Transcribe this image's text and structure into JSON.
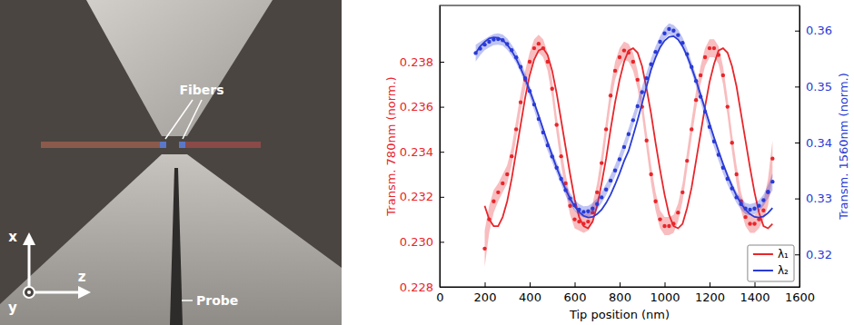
{
  "image_panel": {
    "labels": [
      "Fibers",
      "Probe"
    ],
    "axes": [
      "x",
      "y",
      "z"
    ]
  },
  "chart_data": {
    "type": "line",
    "xlabel": "Tip position (nm)",
    "ylabel": "Transm. 780nm (norm.)",
    "y2label": "Transm. 1560nm (norm.)",
    "xlim": [
      0,
      1600
    ],
    "xticks": [
      0,
      200,
      400,
      600,
      800,
      1000,
      1200,
      1400,
      1600
    ],
    "ylim": [
      0.228,
      0.2405
    ],
    "yticks": [
      0.228,
      {
        "value": 0.23,
        "label": "0.230"
      },
      0.232,
      0.234,
      0.236,
      0.238
    ],
    "y2lim": [
      0.3142,
      0.3645
    ],
    "y2ticks": [
      0.32,
      0.33,
      0.34,
      0.35,
      0.36
    ],
    "grid": false,
    "legend": "lower right",
    "series": [
      {
        "name": "λ₁",
        "color": "#e8262b",
        "marker": "circle",
        "x": [
          200,
          220,
          240,
          260,
          280,
          300,
          320,
          340,
          360,
          380,
          400,
          420,
          440,
          460,
          480,
          500,
          520,
          540,
          560,
          580,
          600,
          620,
          640,
          660,
          680,
          700,
          720,
          740,
          760,
          780,
          800,
          820,
          840,
          860,
          880,
          900,
          920,
          940,
          960,
          980,
          1000,
          1020,
          1040,
          1060,
          1080,
          1100,
          1120,
          1140,
          1160,
          1180,
          1200,
          1220,
          1240,
          1260,
          1280,
          1300,
          1320,
          1340,
          1360,
          1380,
          1400,
          1420,
          1440,
          1460,
          1480
        ],
        "values": [
          0.2297,
          0.231,
          0.2318,
          0.2322,
          0.2326,
          0.233,
          0.2338,
          0.235,
          0.2362,
          0.2372,
          0.238,
          0.2386,
          0.2388,
          0.2386,
          0.238,
          0.2368,
          0.2352,
          0.2338,
          0.2326,
          0.2316,
          0.231,
          0.2309,
          0.2308,
          0.2309,
          0.2313,
          0.2322,
          0.2335,
          0.235,
          0.2365,
          0.2376,
          0.2382,
          0.2385,
          0.2384,
          0.238,
          0.2372,
          0.236,
          0.2345,
          0.233,
          0.2318,
          0.231,
          0.2307,
          0.2307,
          0.2308,
          0.2313,
          0.2322,
          0.2336,
          0.235,
          0.2363,
          0.2374,
          0.2382,
          0.2386,
          0.2386,
          0.2383,
          0.2374,
          0.236,
          0.2344,
          0.233,
          0.2318,
          0.2311,
          0.2308,
          0.2308,
          0.231,
          0.2314,
          0.2322,
          0.2337
        ],
        "errors": [
          0.0008,
          0.0006,
          0.0005,
          0.0004,
          0.0004,
          0.0004,
          0.0004,
          0.0004,
          0.0004,
          0.0004,
          0.0004,
          0.0004,
          0.0004,
          0.0004,
          0.0004,
          0.0004,
          0.0004,
          0.0004,
          0.0004,
          0.0004,
          0.0004,
          0.0004,
          0.0004,
          0.0004,
          0.0004,
          0.0004,
          0.0004,
          0.0004,
          0.0004,
          0.0004,
          0.0004,
          0.0004,
          0.0004,
          0.0004,
          0.0004,
          0.0004,
          0.0004,
          0.0004,
          0.0004,
          0.0004,
          0.0004,
          0.0004,
          0.0004,
          0.0004,
          0.0004,
          0.0004,
          0.0004,
          0.0004,
          0.0004,
          0.0004,
          0.0004,
          0.0004,
          0.0004,
          0.0004,
          0.0004,
          0.0004,
          0.0004,
          0.0004,
          0.0004,
          0.0004,
          0.0004,
          0.0004,
          0.0004,
          0.0006,
          0.0008
        ],
        "fit": [
          0.2316,
          0.231,
          0.2307,
          0.2307,
          0.2311,
          0.2318,
          0.2328,
          0.234,
          0.2352,
          0.2364,
          0.2374,
          0.2381,
          0.2385,
          0.2386,
          0.2383,
          0.2376,
          0.2366,
          0.2354,
          0.2342,
          0.233,
          0.2319,
          0.2311,
          0.2307,
          0.2306,
          0.2309,
          0.2316,
          0.2326,
          0.2337,
          0.235,
          0.2362,
          0.2372,
          0.238,
          0.2385,
          0.2386,
          0.2384,
          0.2378,
          0.2368,
          0.2357,
          0.2344,
          0.2332,
          0.2321,
          0.2312,
          0.2307,
          0.2306,
          0.2308,
          0.2315,
          0.2324,
          0.2336,
          0.2348,
          0.236,
          0.2371,
          0.2379,
          0.2385,
          0.2386,
          0.2384,
          0.2378,
          0.2369,
          0.2357,
          0.2345,
          0.2333,
          0.2322,
          0.2313,
          0.2307,
          0.2306,
          0.2308
        ]
      },
      {
        "name": "λ₂",
        "color": "#2a3bd6",
        "marker": "circle",
        "axis": "y2",
        "x": [
          160,
          180,
          200,
          220,
          240,
          260,
          280,
          300,
          320,
          340,
          360,
          380,
          400,
          420,
          440,
          460,
          480,
          500,
          520,
          540,
          560,
          580,
          600,
          620,
          640,
          660,
          680,
          700,
          720,
          740,
          760,
          780,
          800,
          820,
          840,
          860,
          880,
          900,
          920,
          940,
          960,
          980,
          1000,
          1020,
          1040,
          1060,
          1080,
          1100,
          1120,
          1140,
          1160,
          1180,
          1200,
          1220,
          1240,
          1260,
          1280,
          1300,
          1320,
          1340,
          1360,
          1380,
          1400,
          1420,
          1440,
          1460,
          1480
        ],
        "values": [
          0.356,
          0.3568,
          0.3575,
          0.358,
          0.3584,
          0.3585,
          0.3583,
          0.3576,
          0.3565,
          0.3552,
          0.3535,
          0.3515,
          0.3492,
          0.3468,
          0.3442,
          0.3418,
          0.3395,
          0.3375,
          0.3355,
          0.3335,
          0.3315,
          0.33,
          0.3288,
          0.328,
          0.3276,
          0.3277,
          0.3282,
          0.329,
          0.3302,
          0.3316,
          0.3332,
          0.335,
          0.337,
          0.3392,
          0.3415,
          0.344,
          0.3465,
          0.349,
          0.3515,
          0.354,
          0.3562,
          0.358,
          0.3595,
          0.3603,
          0.36,
          0.3592,
          0.3578,
          0.3558,
          0.3535,
          0.351,
          0.3482,
          0.3455,
          0.3428,
          0.3402,
          0.3378,
          0.3355,
          0.3335,
          0.3318,
          0.3302,
          0.329,
          0.3282,
          0.328,
          0.3282,
          0.3287,
          0.3297,
          0.3312,
          0.333
        ],
        "errors": [
          0.0015,
          0.0012,
          0.001,
          0.001,
          0.001,
          0.001,
          0.001,
          0.001,
          0.001,
          0.001,
          0.001,
          0.001,
          0.001,
          0.001,
          0.001,
          0.001,
          0.001,
          0.001,
          0.001,
          0.001,
          0.001,
          0.001,
          0.001,
          0.001,
          0.001,
          0.001,
          0.001,
          0.001,
          0.001,
          0.001,
          0.001,
          0.001,
          0.001,
          0.001,
          0.001,
          0.001,
          0.001,
          0.001,
          0.001,
          0.001,
          0.001,
          0.001,
          0.001,
          0.001,
          0.001,
          0.001,
          0.001,
          0.001,
          0.001,
          0.001,
          0.001,
          0.001,
          0.001,
          0.001,
          0.001,
          0.001,
          0.001,
          0.001,
          0.001,
          0.001,
          0.001,
          0.001,
          0.001,
          0.001,
          0.001,
          0.0012,
          0.0015
        ],
        "fit": [
          0.356,
          0.3572,
          0.358,
          0.3586,
          0.3588,
          0.3587,
          0.3583,
          0.3575,
          0.3564,
          0.355,
          0.3533,
          0.3514,
          0.3493,
          0.3471,
          0.3448,
          0.3424,
          0.34,
          0.3377,
          0.3355,
          0.3335,
          0.3316,
          0.33,
          0.3286,
          0.3276,
          0.3269,
          0.3266,
          0.3267,
          0.3272,
          0.328,
          0.3292,
          0.3307,
          0.3325,
          0.3345,
          0.3367,
          0.3385,
          0.3412,
          0.344,
          0.347,
          0.35,
          0.353,
          0.3552,
          0.357,
          0.3582,
          0.3589,
          0.359,
          0.3584,
          0.3572,
          0.3555,
          0.3534,
          0.3511,
          0.3486,
          0.346,
          0.3434,
          0.3409,
          0.3385,
          0.3362,
          0.3341,
          0.3322,
          0.3305,
          0.3291,
          0.328,
          0.3272,
          0.3267,
          0.3266,
          0.3268,
          0.3274,
          0.3283
        ]
      }
    ]
  }
}
